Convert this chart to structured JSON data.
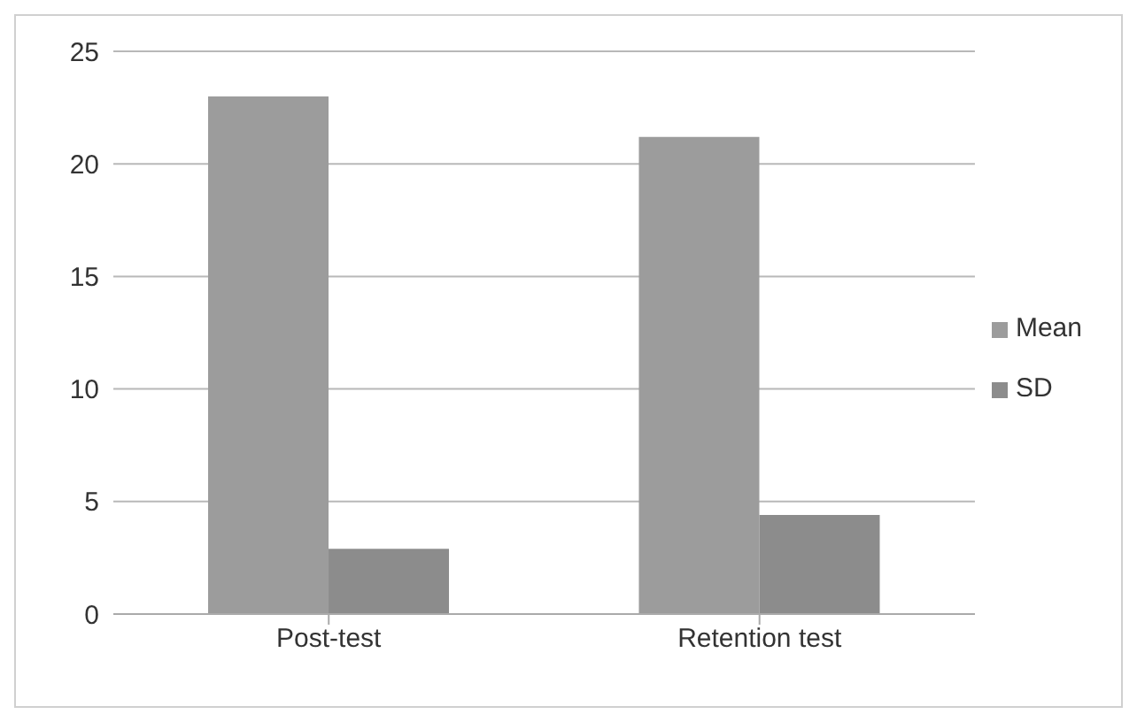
{
  "chart_data": {
    "type": "bar",
    "categories": [
      "Post-test",
      "Retention test"
    ],
    "series": [
      {
        "name": "Mean",
        "color": "#9c9c9c",
        "values": [
          23,
          21.2
        ]
      },
      {
        "name": "SD",
        "color": "#8c8c8c",
        "values": [
          2.9,
          4.4
        ]
      }
    ],
    "ylim": [
      0,
      25
    ],
    "yticks": [
      0,
      5,
      10,
      15,
      20,
      25
    ],
    "grid": "y",
    "legend": "right"
  }
}
